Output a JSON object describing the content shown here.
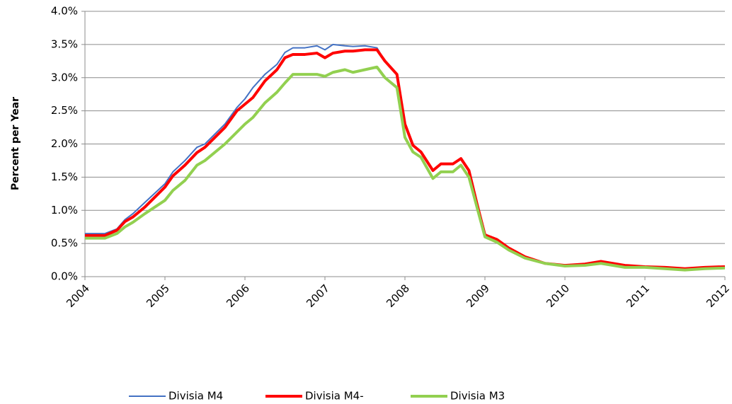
{
  "chart_data": {
    "type": "line",
    "y_label": "Percent per Year",
    "x": [
      2004,
      2004.25,
      2004.4,
      2004.5,
      2004.6,
      2004.75,
      2005,
      2005.1,
      2005.25,
      2005.4,
      2005.5,
      2005.75,
      2005.9,
      2006,
      2006.1,
      2006.25,
      2006.4,
      2006.5,
      2006.6,
      2006.75,
      2006.9,
      2007,
      2007.1,
      2007.25,
      2007.35,
      2007.5,
      2007.65,
      2007.75,
      2007.9,
      2008,
      2008.1,
      2008.2,
      2008.35,
      2008.45,
      2008.6,
      2008.7,
      2008.8,
      2008.9,
      2009,
      2009.15,
      2009.3,
      2009.5,
      2009.75,
      2010,
      2010.25,
      2010.45,
      2010.75,
      2011,
      2011.25,
      2011.5,
      2011.75,
      2012
    ],
    "series": [
      {
        "name": "Divisia M4",
        "color": "#4472c4",
        "values": [
          0.65,
          0.65,
          0.72,
          0.86,
          0.95,
          1.12,
          1.4,
          1.58,
          1.75,
          1.95,
          2.0,
          2.3,
          2.55,
          2.68,
          2.85,
          3.05,
          3.2,
          3.38,
          3.45,
          3.45,
          3.48,
          3.42,
          3.5,
          3.48,
          3.47,
          3.48,
          3.45,
          3.25,
          3.05,
          2.3,
          1.98,
          1.88,
          1.6,
          1.7,
          1.7,
          1.78,
          1.6,
          1.1,
          0.63,
          0.56,
          0.43,
          0.3,
          0.2,
          0.17,
          0.19,
          0.23,
          0.17,
          0.15,
          0.14,
          0.12,
          0.14,
          0.15
        ]
      },
      {
        "name": "Divisia M4-",
        "color": "#ff0000",
        "values": [
          0.62,
          0.62,
          0.7,
          0.83,
          0.9,
          1.05,
          1.35,
          1.52,
          1.68,
          1.87,
          1.95,
          2.25,
          2.5,
          2.6,
          2.7,
          2.95,
          3.12,
          3.3,
          3.35,
          3.35,
          3.37,
          3.3,
          3.37,
          3.4,
          3.4,
          3.42,
          3.42,
          3.25,
          3.05,
          2.3,
          1.98,
          1.88,
          1.6,
          1.7,
          1.7,
          1.78,
          1.6,
          1.1,
          0.63,
          0.56,
          0.43,
          0.3,
          0.2,
          0.17,
          0.19,
          0.23,
          0.17,
          0.15,
          0.14,
          0.12,
          0.14,
          0.15
        ]
      },
      {
        "name": "Divisia M3",
        "color": "#92d050",
        "values": [
          0.58,
          0.58,
          0.65,
          0.75,
          0.82,
          0.95,
          1.15,
          1.3,
          1.45,
          1.68,
          1.75,
          2.0,
          2.18,
          2.3,
          2.4,
          2.62,
          2.78,
          2.92,
          3.05,
          3.05,
          3.05,
          3.02,
          3.08,
          3.12,
          3.08,
          3.12,
          3.16,
          3.0,
          2.85,
          2.1,
          1.88,
          1.8,
          1.48,
          1.58,
          1.58,
          1.68,
          1.5,
          1.05,
          0.6,
          0.52,
          0.4,
          0.28,
          0.2,
          0.16,
          0.17,
          0.2,
          0.14,
          0.14,
          0.12,
          0.1,
          0.12,
          0.13
        ]
      }
    ],
    "xlim": [
      2004,
      2012
    ],
    "xticks": [
      2004,
      2005,
      2006,
      2007,
      2008,
      2009,
      2010,
      2011,
      2012
    ],
    "ylim": [
      0,
      4
    ],
    "yticks": [
      {
        "value": 0,
        "label": "0.0%"
      },
      {
        "value": 0.5,
        "label": "0.5%"
      },
      {
        "value": 1,
        "label": "1.0%"
      },
      {
        "value": 1.5,
        "label": "1.5%"
      },
      {
        "value": 2,
        "label": "2.0%"
      },
      {
        "value": 2.5,
        "label": "2.5%"
      },
      {
        "value": 3,
        "label": "3.0%"
      },
      {
        "value": 3.5,
        "label": "3.5%"
      },
      {
        "value": 4,
        "label": "4.0%"
      }
    ],
    "grid": true,
    "legend": "bottom"
  }
}
